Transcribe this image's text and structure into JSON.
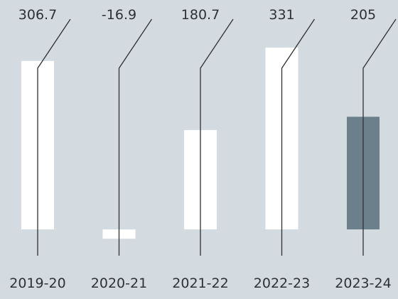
{
  "chart_data": {
    "type": "bar",
    "title": "",
    "xlabel": "",
    "ylabel": "",
    "categories": [
      "2019-20",
      "2020-21",
      "2021-22",
      "2022-23",
      "2023-24"
    ],
    "values": [
      306.7,
      -16.9,
      180.7,
      331,
      205
    ],
    "value_labels": [
      "306.7",
      "-16.9",
      "180.7",
      "331",
      "205"
    ],
    "ylim": [
      -30,
      331
    ],
    "grid": false,
    "legend": "none",
    "highlight_index": 4,
    "colors": {
      "background": "#d4dbe0",
      "bar": "#ffffff",
      "highlight_bar": "#6b808a",
      "leader_line": "#2d3136",
      "text": "#2d3136"
    }
  }
}
